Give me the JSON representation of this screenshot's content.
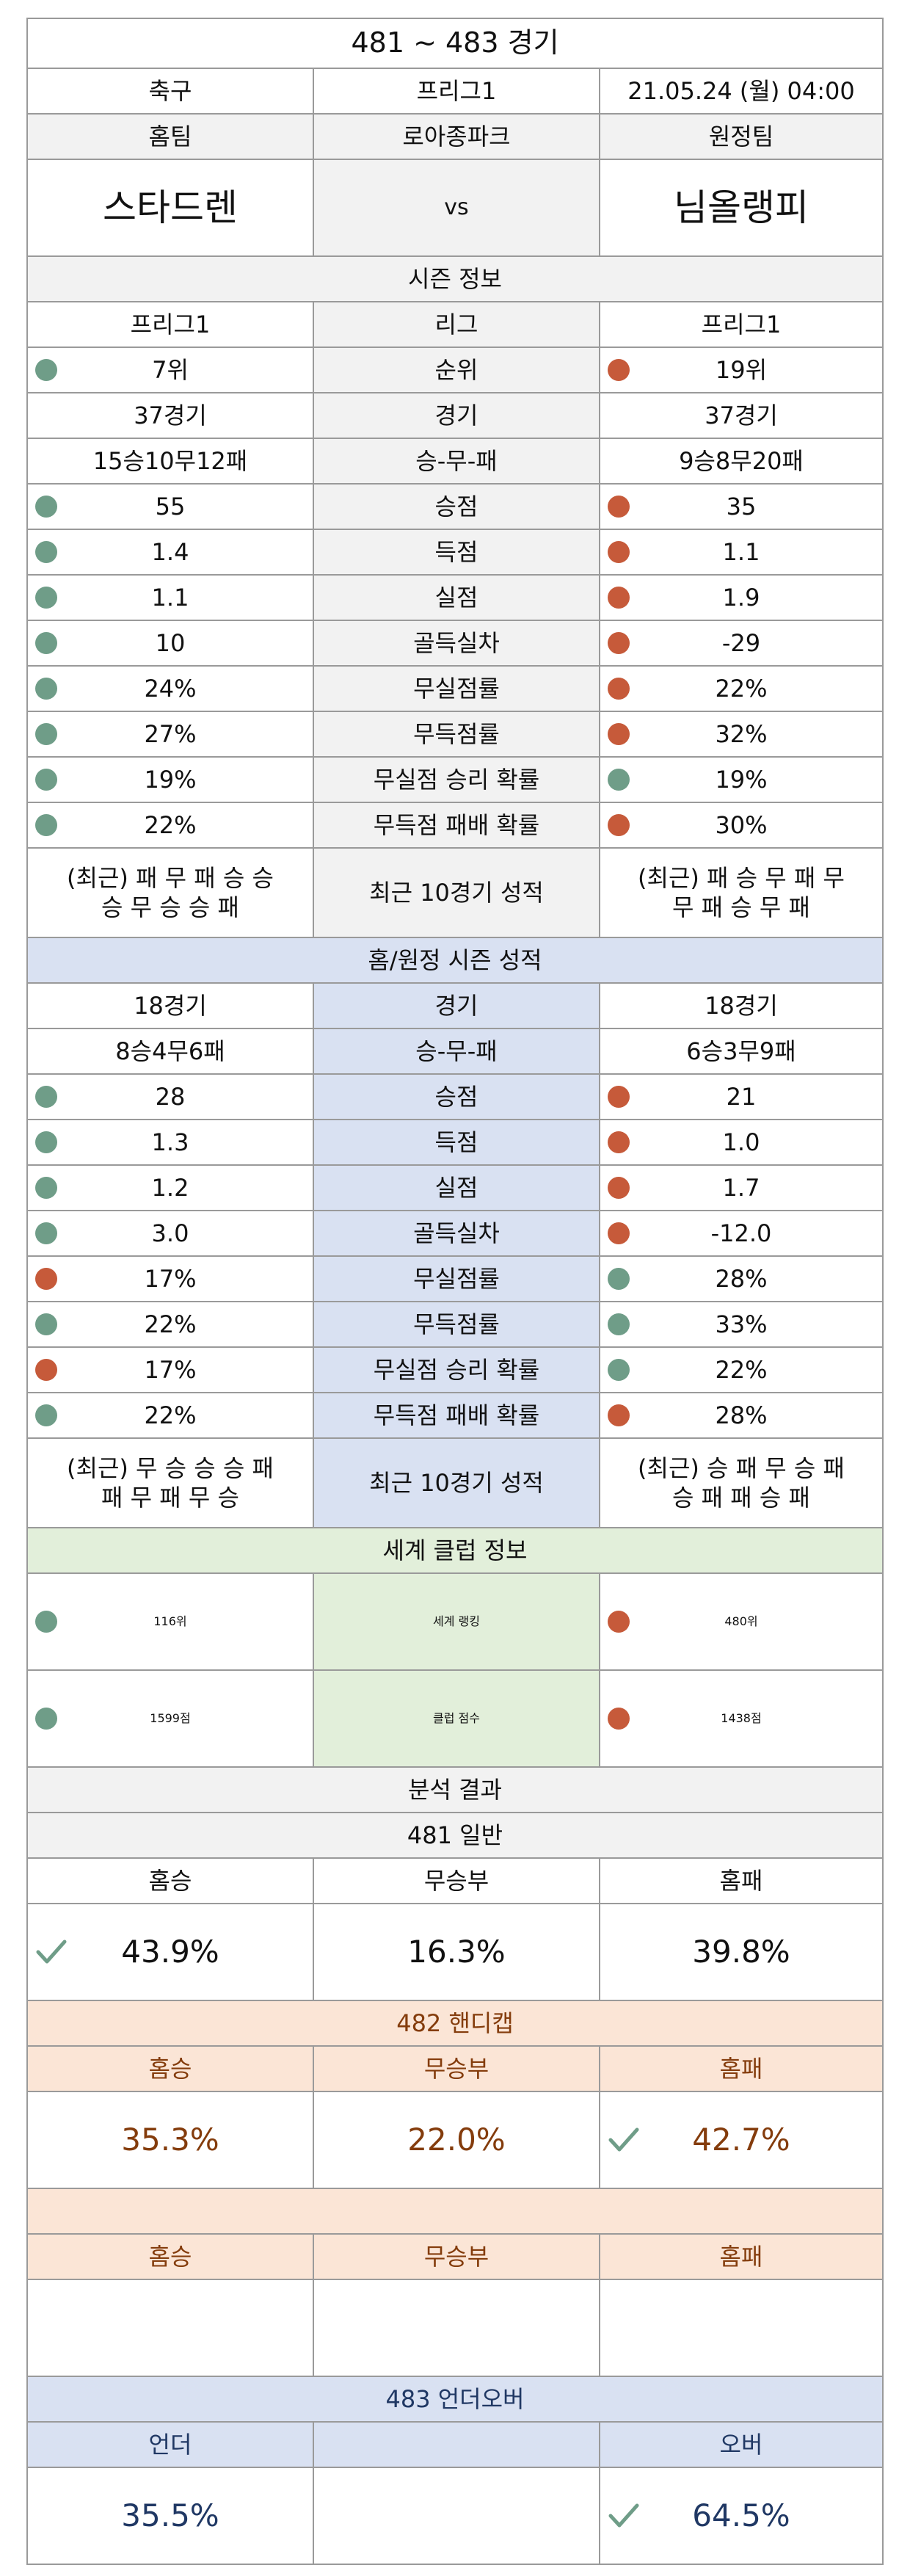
{
  "title": "481 ~ 483 경기",
  "match_info": {
    "sport": "축구",
    "league": "프리그1",
    "datetime": "21.05.24 (월) 04:00",
    "home_label": "홈팀",
    "venue": "로아종파크",
    "away_label": "원정팀",
    "home_team": "스타드렌",
    "vs": "vs",
    "away_team": "님올랭피"
  },
  "season": {
    "header": "시즌 정보",
    "rows": [
      {
        "home": "프리그1",
        "label": "리그",
        "away": "프리그1",
        "home_dot": "",
        "away_dot": ""
      },
      {
        "home": "7위",
        "label": "순위",
        "away": "19위",
        "home_dot": "green",
        "away_dot": "red"
      },
      {
        "home": "37경기",
        "label": "경기",
        "away": "37경기",
        "home_dot": "",
        "away_dot": ""
      },
      {
        "home": "15승10무12패",
        "label": "승-무-패",
        "away": "9승8무20패",
        "home_dot": "",
        "away_dot": ""
      },
      {
        "home": "55",
        "label": "승점",
        "away": "35",
        "home_dot": "green",
        "away_dot": "red"
      },
      {
        "home": "1.4",
        "label": "득점",
        "away": "1.1",
        "home_dot": "green",
        "away_dot": "red"
      },
      {
        "home": "1.1",
        "label": "실점",
        "away": "1.9",
        "home_dot": "green",
        "away_dot": "red"
      },
      {
        "home": "10",
        "label": "골득실차",
        "away": "-29",
        "home_dot": "green",
        "away_dot": "red"
      },
      {
        "home": "24%",
        "label": "무실점률",
        "away": "22%",
        "home_dot": "green",
        "away_dot": "red"
      },
      {
        "home": "27%",
        "label": "무득점률",
        "away": "32%",
        "home_dot": "green",
        "away_dot": "red"
      },
      {
        "home": "19%",
        "label": "무실점 승리 확률",
        "away": "19%",
        "home_dot": "green",
        "away_dot": "green"
      },
      {
        "home": "22%",
        "label": "무득점 패배 확률",
        "away": "30%",
        "home_dot": "green",
        "away_dot": "red"
      }
    ],
    "recent": {
      "home_line1": "(최근) 패 무 패 승 승",
      "home_line2": "승 무 승 승 패",
      "label": "최근 10경기 성적",
      "away_line1": "(최근) 패 승 무 패 무",
      "away_line2": "무 패 승 무 패"
    }
  },
  "homeaway": {
    "header": "홈/원정 시즌 성적",
    "rows": [
      {
        "home": "18경기",
        "label": "경기",
        "away": "18경기",
        "home_dot": "",
        "away_dot": ""
      },
      {
        "home": "8승4무6패",
        "label": "승-무-패",
        "away": "6승3무9패",
        "home_dot": "",
        "away_dot": ""
      },
      {
        "home": "28",
        "label": "승점",
        "away": "21",
        "home_dot": "green",
        "away_dot": "red"
      },
      {
        "home": "1.3",
        "label": "득점",
        "away": "1.0",
        "home_dot": "green",
        "away_dot": "red"
      },
      {
        "home": "1.2",
        "label": "실점",
        "away": "1.7",
        "home_dot": "green",
        "away_dot": "red"
      },
      {
        "home": "3.0",
        "label": "골득실차",
        "away": "-12.0",
        "home_dot": "green",
        "away_dot": "red"
      },
      {
        "home": "17%",
        "label": "무실점률",
        "away": "28%",
        "home_dot": "red",
        "away_dot": "green"
      },
      {
        "home": "22%",
        "label": "무득점률",
        "away": "33%",
        "home_dot": "green",
        "away_dot": "green"
      },
      {
        "home": "17%",
        "label": "무실점 승리 확률",
        "away": "22%",
        "home_dot": "red",
        "away_dot": "green"
      },
      {
        "home": "22%",
        "label": "무득점 패배 확률",
        "away": "28%",
        "home_dot": "green",
        "away_dot": "red"
      }
    ],
    "recent": {
      "home_line1": "(최근) 무 승 승 승 패",
      "home_line2": "패 무 패 무 승",
      "label": "최근 10경기 성적",
      "away_line1": "(최근) 승 패 무 승 패",
      "away_line2": "승 패 패 승 패"
    }
  },
  "world": {
    "header": "세계 클럽 정보",
    "rows": [
      {
        "home": "116위",
        "label": "세계 랭킹",
        "away": "480위",
        "home_dot": "green",
        "away_dot": "red"
      },
      {
        "home": "1599점",
        "label": "클럽 점수",
        "away": "1438점",
        "home_dot": "green",
        "away_dot": "red"
      }
    ]
  },
  "analysis": {
    "header": "분석 결과",
    "general": {
      "header": "481 일반",
      "h1": "홈승",
      "h2": "무승부",
      "h3": "홈패",
      "v1": "43.9%",
      "v2": "16.3%",
      "v3": "39.8%",
      "check": "home"
    },
    "handicap": {
      "header": "482 핸디캡",
      "h1": "홈승",
      "h2": "무승부",
      "h3": "홈패",
      "v1": "35.3%",
      "v2": "22.0%",
      "v3": "42.7%",
      "check": "away"
    },
    "blank": {
      "header": "",
      "h1": "홈승",
      "h2": "무승부",
      "h3": "홈패"
    },
    "underover": {
      "header": "483 언더오버",
      "h1": "언더",
      "h2": "",
      "h3": "오버",
      "v1": "35.5%",
      "v2": "",
      "v3": "64.5%",
      "check": "away"
    }
  },
  "colors": {
    "dot_green": "#6f9d88",
    "dot_red": "#c65a3a",
    "blue_bg": "#d9e1f2",
    "green_bg": "#e2efda",
    "peach_bg": "#fbe5d6",
    "brown_text": "#843c0c",
    "navy_text": "#203864"
  },
  "icons": {
    "check": "check-icon",
    "dot": "status-dot-icon"
  }
}
